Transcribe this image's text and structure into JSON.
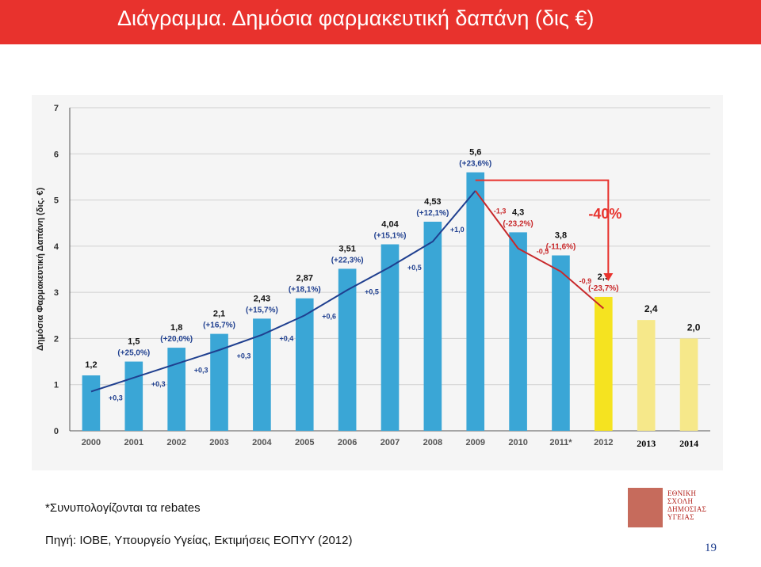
{
  "header": {
    "title": "Διάγραμμα. Δημόσια φαρμακευτική δαπάνη (δις €)"
  },
  "chart_data": {
    "type": "bar",
    "title": "",
    "ylabel": "Δημόσια Φαρμακευτική Δαπάνη (δις. €)",
    "xlabel": "",
    "ylim": [
      0,
      7
    ],
    "yticks": [
      "0",
      "1",
      "2",
      "3",
      "4",
      "5",
      "6",
      "7"
    ],
    "grid": true,
    "categories": [
      "2000",
      "2001",
      "2002",
      "2003",
      "2004",
      "2005",
      "2006",
      "2007",
      "2008",
      "2009",
      "2010",
      "2011*",
      "2012",
      "2013",
      "2014"
    ],
    "values": [
      1.2,
      1.5,
      1.8,
      2.1,
      2.43,
      2.87,
      3.51,
      4.04,
      4.53,
      5.6,
      4.3,
      3.8,
      2.9,
      2.4,
      2.0
    ],
    "value_labels": [
      "1,2",
      "1,5",
      "1,8",
      "2,1",
      "2,43",
      "2,87",
      "3,51",
      "4,04",
      "4,53",
      "5,6",
      "4,3",
      "3,8",
      "2,9",
      "2,4",
      "2,0"
    ],
    "pct_labels": [
      "",
      "(+25,0%)",
      "(+20,0%)",
      "(+16,7%)",
      "(+15,7%)",
      "(+18,1%)",
      "(+22,3%)",
      "(+15,1%)",
      "(+12,1%)",
      "(+23,6%)",
      "(-23,2%)",
      "(-11,6%)",
      "(-23,7%)",
      "",
      ""
    ],
    "bar_colors": [
      "#3aa6d6",
      "#3aa6d6",
      "#3aa6d6",
      "#3aa6d6",
      "#3aa6d6",
      "#3aa6d6",
      "#3aa6d6",
      "#3aa6d6",
      "#3aa6d6",
      "#3aa6d6",
      "#3aa6d6",
      "#3aa6d6",
      "#f5e320",
      "#f6e88a",
      "#f6e88a"
    ],
    "trend_line": {
      "color_up": "#1f3f8f",
      "color_down": "#c8282a",
      "values": [
        0.85,
        1.15,
        1.45,
        1.75,
        2.08,
        2.5,
        3.05,
        3.55,
        4.1,
        5.2,
        3.95,
        3.45,
        2.65
      ]
    },
    "diff_labels": [
      "+0,3",
      "+0,3",
      "+0,3",
      "+0,3",
      "+0,4",
      "+0,6",
      "+0,5",
      "+0,5",
      "+1,0",
      "-1,3",
      "-0,5",
      "-0,9"
    ],
    "annotation": {
      "text": "-40%",
      "color": "#e8322d"
    },
    "colors": {
      "axis": "#555555",
      "grid": "#d0d0d0",
      "plot_bg": "#f5f5f5"
    }
  },
  "footer": {
    "footnote": "*Συνυπολογίζονται τα rebates",
    "source": "Πηγή: ΙΟΒΕ, Υπουργείο Υγείας, Εκτιμήσεις ΕΟΠΥΥ (2012)",
    "logo_text": [
      "ΕΘΝΙΚΗ",
      "ΣΧΟΛΗ",
      "ΔΗΜΟΣΙΑΣ",
      "ΥΓΕΙΑΣ"
    ],
    "page_number": "19"
  }
}
